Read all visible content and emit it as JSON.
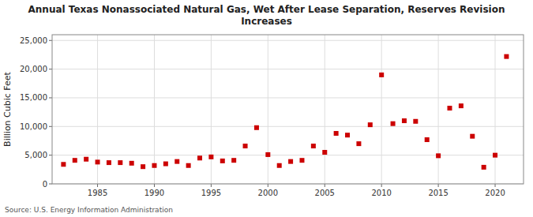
{
  "chart_data": {
    "type": "scatter",
    "title": "Annual Texas Nonassociated Natural Gas, Wet After Lease Separation, Reserves Revision\nIncreases",
    "ylabel": "Billion Cubic Feet",
    "source": "Source: U.S. Energy Information Administration",
    "color": "#cc0000",
    "marker": "square",
    "grid": true,
    "x": [
      1982,
      1983,
      1984,
      1985,
      1986,
      1987,
      1988,
      1989,
      1990,
      1991,
      1992,
      1993,
      1994,
      1995,
      1996,
      1997,
      1998,
      1999,
      2000,
      2001,
      2002,
      2003,
      2004,
      2005,
      2006,
      2007,
      2008,
      2009,
      2010,
      2011,
      2012,
      2013,
      2014,
      2015,
      2016,
      2017,
      2018,
      2019,
      2020,
      2021
    ],
    "values": [
      3400,
      4100,
      4300,
      3800,
      3700,
      3700,
      3600,
      3000,
      3200,
      3500,
      3900,
      3200,
      4500,
      4700,
      4000,
      4100,
      6600,
      9800,
      5100,
      3200,
      3900,
      4100,
      6600,
      5500,
      8800,
      8500,
      7000,
      10300,
      19000,
      10500,
      11000,
      10900,
      7700,
      4900,
      13200,
      13600,
      8300,
      2900,
      5000,
      22200
    ],
    "xlim": [
      1981,
      2022.5
    ],
    "ylim": [
      0,
      26000
    ],
    "xticks": [
      1985,
      1990,
      1995,
      2000,
      2005,
      2010,
      2015,
      2020
    ],
    "yticks": [
      0,
      {
        "value": 5000,
        "label": "5,000"
      },
      {
        "value": 10000,
        "label": "10,000"
      },
      {
        "value": 15000,
        "label": "15,000"
      },
      {
        "value": 20000,
        "label": "20,000"
      },
      {
        "value": 25000,
        "label": "25,000"
      }
    ]
  }
}
